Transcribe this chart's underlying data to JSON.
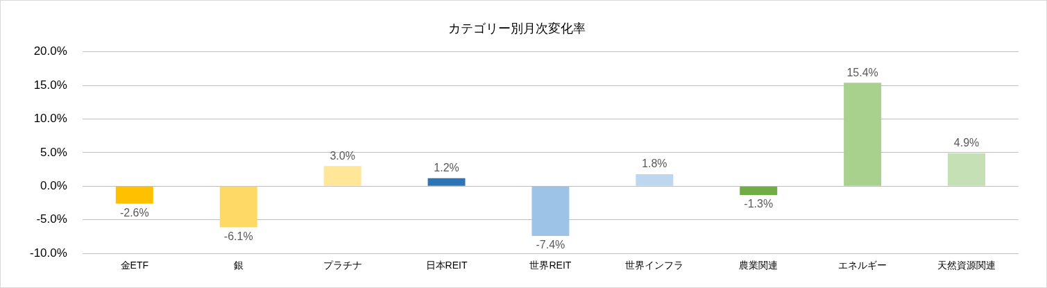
{
  "chart_data": {
    "type": "bar",
    "title": "カテゴリー別月次変化率",
    "categories": [
      "金ETF",
      "銀",
      "プラチナ",
      "日本REIT",
      "世界REIT",
      "世界インフラ",
      "農業関連",
      "エネルギー",
      "天然資源関連"
    ],
    "values": [
      -2.6,
      -6.1,
      3.0,
      1.2,
      -7.4,
      1.8,
      -1.3,
      15.4,
      4.9
    ],
    "colors": [
      "#ffc000",
      "#ffd966",
      "#ffe699",
      "#2e75b6",
      "#9dc3e6",
      "#bdd7ee",
      "#70ad47",
      "#a9d18e",
      "#c5e0b4"
    ],
    "value_labels": [
      "-2.6%",
      "-6.1%",
      "3.0%",
      "1.2%",
      "-7.4%",
      "1.8%",
      "-1.3%",
      "15.4%",
      "4.9%"
    ],
    "ylim": [
      -10,
      20
    ],
    "yticks": [
      {
        "value": -10,
        "label": "-10.0%"
      },
      {
        "value": -5,
        "label": "-5.0%"
      },
      {
        "value": 0,
        "label": "0.0%"
      },
      {
        "value": 5,
        "label": "5.0%"
      },
      {
        "value": 10,
        "label": "10.0%"
      },
      {
        "value": 15,
        "label": "15.0%"
      },
      {
        "value": 20,
        "label": "20.0%"
      }
    ],
    "grid": "y",
    "legend": false
  }
}
